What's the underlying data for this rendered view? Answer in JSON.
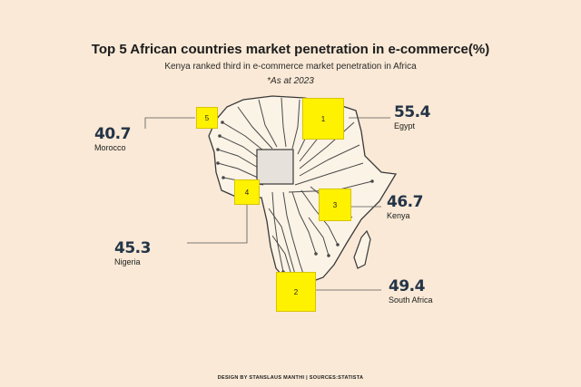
{
  "chart_data": {
    "type": "table",
    "title": "Top 5 African countries market penetration in e-commerce(%)",
    "subtitle": "Kenya ranked third in e-commerce market penetration in Africa",
    "note": "*As at 2023",
    "items": [
      {
        "rank": "1",
        "country": "Egypt",
        "value": 55.4,
        "value_label": "55.4"
      },
      {
        "rank": "2",
        "country": "South Africa",
        "value": 49.4,
        "value_label": "49.4"
      },
      {
        "rank": "3",
        "country": "Kenya",
        "value": 46.7,
        "value_label": "46.7"
      },
      {
        "rank": "4",
        "country": "Nigeria",
        "value": 45.3,
        "value_label": "45.3"
      },
      {
        "rank": "5",
        "country": "Morocco",
        "value": 40.7,
        "value_label": "40.7"
      }
    ],
    "highlight_color": "#fff200"
  },
  "footer": "DESIGN BY STANSLAUS MANTHI  |  SOURCES:STATISTA"
}
